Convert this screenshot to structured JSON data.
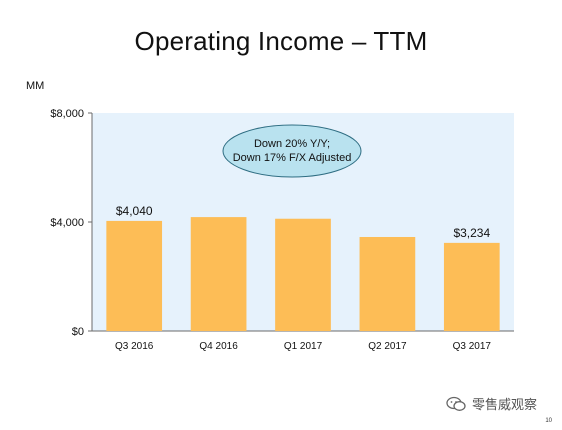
{
  "slide": {
    "title": "Operating Income – TTM",
    "unit": "MM",
    "page_number": "10",
    "watermark_text": "零售威观察",
    "watermark_icon": "wechat-icon"
  },
  "chart_data": {
    "type": "bar",
    "title": "Operating Income – TTM",
    "ylabel": "MM",
    "xlabel": "",
    "categories": [
      "Q3 2016",
      "Q4 2016",
      "Q1 2017",
      "Q2 2017",
      "Q3 2017"
    ],
    "values": [
      4040,
      4180,
      4120,
      3450,
      3234
    ],
    "ylim": [
      0,
      8000
    ],
    "y_ticks": [
      0,
      4000,
      8000
    ],
    "y_tick_labels": [
      "$0",
      "$4,000",
      "$8,000"
    ],
    "data_labels": [
      {
        "index": 0,
        "text": "$4,040"
      },
      {
        "index": 4,
        "text": "$3,234"
      }
    ],
    "annotation": {
      "lines": [
        "Down 20% Y/Y;",
        "Down 17% F/X Adjusted"
      ],
      "fill": "#b9e2ef",
      "stroke": "#2e6d82"
    },
    "bar_color": "#fdbd56",
    "plot_background": "#e6f2fc",
    "legend": "none",
    "grid": false
  }
}
